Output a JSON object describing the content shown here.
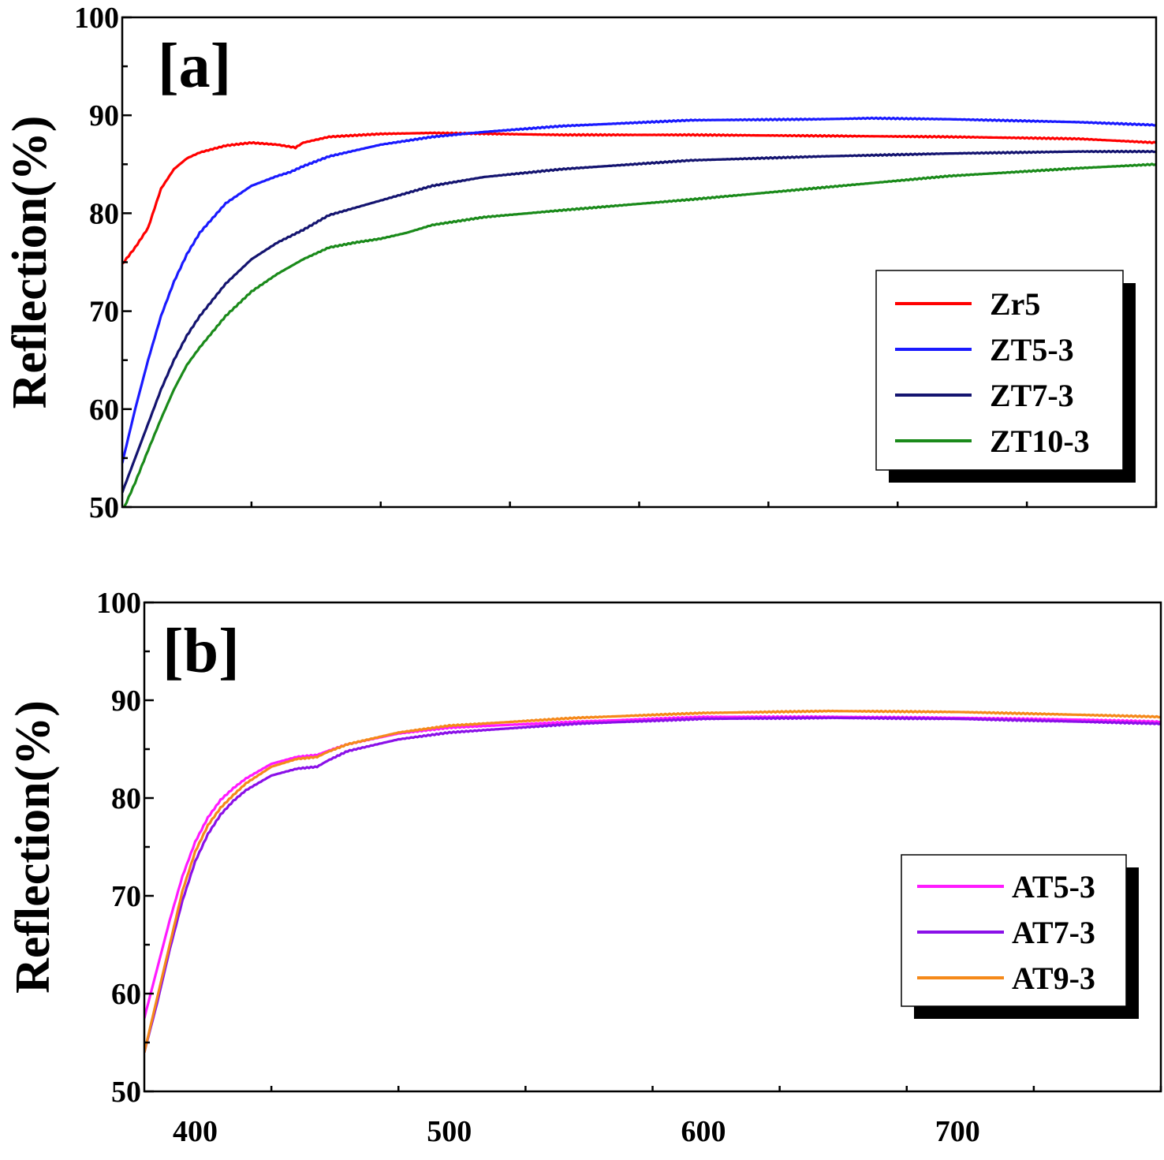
{
  "colors": {
    "Zr5": "#ff0000",
    "ZT5-3": "#1a1aff",
    "ZT7-3": "#141470",
    "ZT10-3": "#1a8a1a",
    "AT5-3": "#ff1aff",
    "AT7-3": "#8a10e8",
    "AT9-3": "#f5891a"
  },
  "chart_data": [
    {
      "type": "line",
      "panel_label": "[a]",
      "xlabel": "",
      "ylabel": "Reflection(%)",
      "xlim": [
        380,
        780
      ],
      "ylim": [
        50,
        100
      ],
      "yticks": [
        50,
        60,
        70,
        80,
        90,
        100
      ],
      "xticks": [
        400,
        500,
        600,
        700
      ],
      "show_x_tick_labels": false,
      "grid": false,
      "legend_position": "right",
      "series": [
        {
          "name": "Zr5",
          "x": [
            380,
            385,
            390,
            395,
            400,
            405,
            410,
            420,
            430,
            440,
            447,
            450,
            460,
            480,
            500,
            550,
            600,
            650,
            700,
            750,
            780
          ],
          "y": [
            74.8,
            76.5,
            78.5,
            82.5,
            84.5,
            85.6,
            86.2,
            86.9,
            87.2,
            87.0,
            86.7,
            87.2,
            87.8,
            88.1,
            88.2,
            88.0,
            88.0,
            87.9,
            87.8,
            87.6,
            87.2
          ]
        },
        {
          "name": "ZT5-3",
          "x": [
            380,
            385,
            390,
            395,
            400,
            405,
            410,
            415,
            420,
            430,
            440,
            445,
            450,
            460,
            480,
            500,
            520,
            550,
            600,
            650,
            670,
            700,
            750,
            780
          ],
          "y": [
            54.5,
            60.0,
            65.0,
            69.5,
            73.0,
            75.8,
            78.0,
            79.5,
            81.0,
            82.8,
            83.8,
            84.2,
            84.8,
            85.8,
            87.0,
            87.8,
            88.3,
            88.9,
            89.5,
            89.6,
            89.7,
            89.6,
            89.3,
            89.0
          ]
        },
        {
          "name": "ZT7-3",
          "x": [
            380,
            385,
            390,
            395,
            400,
            405,
            410,
            420,
            430,
            440,
            450,
            460,
            480,
            500,
            520,
            550,
            600,
            650,
            700,
            750,
            780
          ],
          "y": [
            51.5,
            55.0,
            58.5,
            62.0,
            65.0,
            67.5,
            69.5,
            72.8,
            75.3,
            77.0,
            78.3,
            79.8,
            81.3,
            82.8,
            83.7,
            84.5,
            85.4,
            85.8,
            86.1,
            86.3,
            86.3
          ]
        },
        {
          "name": "ZT10-3",
          "x": [
            380,
            385,
            390,
            395,
            400,
            405,
            410,
            420,
            430,
            440,
            450,
            460,
            470,
            480,
            490,
            500,
            520,
            550,
            600,
            650,
            700,
            750,
            780
          ],
          "y": [
            49.5,
            52.5,
            55.8,
            59.0,
            62.0,
            64.5,
            66.3,
            69.5,
            72.0,
            73.8,
            75.3,
            76.5,
            77.0,
            77.4,
            78.0,
            78.8,
            79.6,
            80.3,
            81.4,
            82.6,
            83.8,
            84.6,
            85.0
          ]
        }
      ]
    },
    {
      "type": "line",
      "panel_label": "[b]",
      "xlabel": "",
      "ylabel": "Reflection(%)",
      "xlim": [
        380,
        780
      ],
      "ylim": [
        50,
        100
      ],
      "yticks": [
        50,
        60,
        70,
        80,
        90,
        100
      ],
      "xticks": [
        400,
        500,
        600,
        700
      ],
      "show_x_tick_labels": true,
      "grid": false,
      "legend_position": "bottom-right",
      "series": [
        {
          "name": "AT5-3",
          "x": [
            380,
            385,
            390,
            395,
            400,
            405,
            410,
            415,
            420,
            430,
            440,
            448,
            452,
            460,
            480,
            500,
            550,
            600,
            650,
            700,
            750,
            780
          ],
          "y": [
            57.5,
            62.5,
            67.5,
            72.0,
            75.5,
            78.0,
            79.8,
            81.0,
            82.0,
            83.5,
            84.2,
            84.4,
            84.8,
            85.5,
            86.6,
            87.2,
            87.8,
            88.3,
            88.3,
            88.2,
            88.0,
            87.8
          ]
        },
        {
          "name": "AT7-3",
          "x": [
            380,
            385,
            390,
            395,
            400,
            405,
            410,
            415,
            420,
            430,
            440,
            448,
            452,
            460,
            480,
            500,
            550,
            600,
            650,
            700,
            750,
            780
          ],
          "y": [
            54.0,
            59.0,
            64.5,
            69.5,
            73.5,
            76.3,
            78.3,
            79.7,
            80.8,
            82.3,
            83.0,
            83.2,
            83.8,
            84.8,
            86.0,
            86.7,
            87.6,
            88.1,
            88.2,
            88.1,
            87.8,
            87.6
          ]
        },
        {
          "name": "AT9-3",
          "x": [
            380,
            385,
            390,
            395,
            400,
            405,
            410,
            415,
            420,
            430,
            440,
            448,
            452,
            460,
            480,
            500,
            550,
            600,
            650,
            700,
            750,
            780
          ],
          "y": [
            54.0,
            59.5,
            65.0,
            70.5,
            74.5,
            77.2,
            79.0,
            80.3,
            81.5,
            83.2,
            84.0,
            84.2,
            84.7,
            85.5,
            86.7,
            87.4,
            88.2,
            88.7,
            88.9,
            88.8,
            88.5,
            88.3
          ]
        }
      ]
    }
  ]
}
